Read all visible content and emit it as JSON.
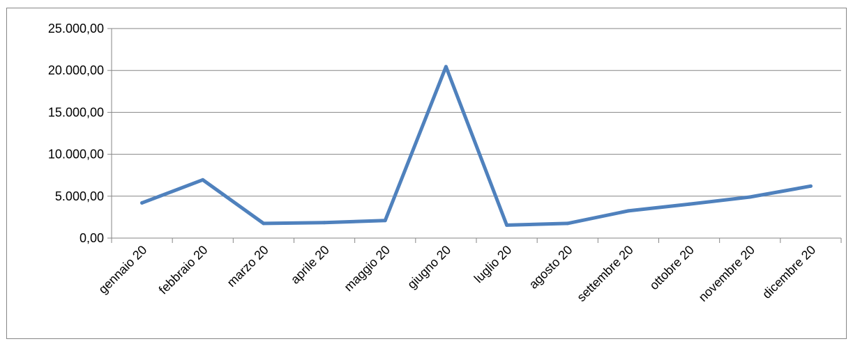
{
  "chart_data": {
    "type": "line",
    "title": "",
    "xlabel": "",
    "ylabel": "",
    "categories": [
      "gennaio 20",
      "febbraio 20",
      "marzo 20",
      "aprile 20",
      "maggio 20",
      "giugno 20",
      "luglio 20",
      "agosto 20",
      "settembre 20",
      "ottobre 20",
      "novembre 20",
      "dicembre 20"
    ],
    "series": [
      {
        "values": [
          4200,
          6950,
          1750,
          1850,
          2100,
          20450,
          1550,
          1750,
          3250,
          4050,
          4900,
          6200
        ],
        "color": "#4F81BD"
      }
    ],
    "ylim": [
      0,
      25000
    ],
    "yticks": [
      "0,00",
      "5.000,00",
      "10.000,00",
      "15.000,00",
      "20.000,00",
      "25.000,00"
    ],
    "grid": true,
    "legend": "none"
  }
}
